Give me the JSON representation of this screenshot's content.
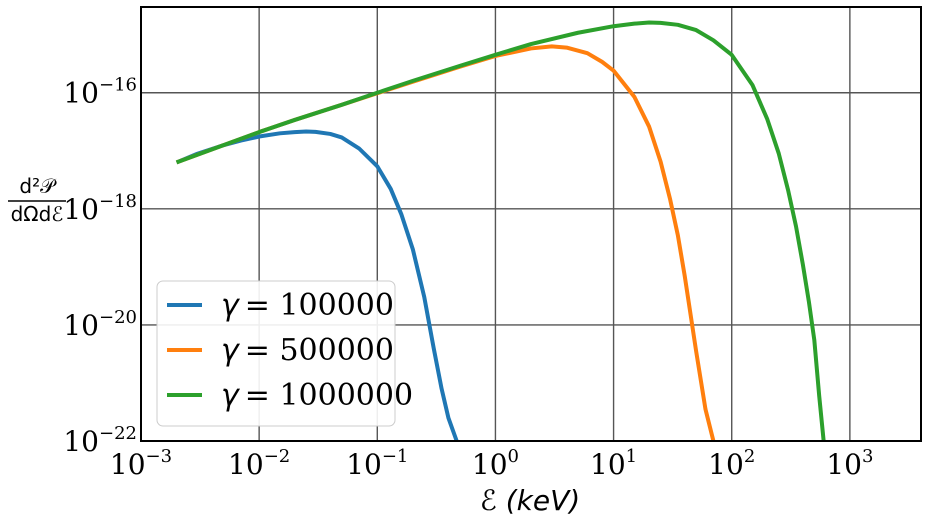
{
  "chart_data": {
    "type": "line",
    "title": "",
    "xlabel": "ℰ (keV)",
    "ylabel_top": "d²𝒫",
    "ylabel_bottom": "dΩdℰ",
    "xscale": "log",
    "yscale": "log",
    "xlim": [
      0.001,
      4000
    ],
    "ylim": [
      1e-22,
      3e-15
    ],
    "grid": true,
    "legend_position": "lower-left",
    "x_ticks": [
      {
        "base": "10",
        "exp": "−3",
        "value": 0.001
      },
      {
        "base": "10",
        "exp": "−2",
        "value": 0.01
      },
      {
        "base": "10",
        "exp": "−1",
        "value": 0.1
      },
      {
        "base": "10",
        "exp": "0",
        "value": 1
      },
      {
        "base": "10",
        "exp": "1",
        "value": 10
      },
      {
        "base": "10",
        "exp": "2",
        "value": 100
      },
      {
        "base": "10",
        "exp": "3",
        "value": 1000
      }
    ],
    "y_ticks": [
      {
        "base": "10",
        "exp": "−16",
        "value": 1e-16
      },
      {
        "base": "10",
        "exp": "−18",
        "value": 1e-18
      },
      {
        "base": "10",
        "exp": "−20",
        "value": 1e-20
      },
      {
        "base": "10",
        "exp": "−22",
        "value": 1e-22
      }
    ],
    "series": [
      {
        "name": "γ = 100000",
        "gamma_symbol": "γ",
        "gamma_value": "= 100000",
        "color": "#1f77b4",
        "points": [
          [
            0.002,
            6.3e-18
          ],
          [
            0.003,
            8.9e-18
          ],
          [
            0.005,
            1.25e-17
          ],
          [
            0.007,
            1.5e-17
          ],
          [
            0.01,
            1.76e-17
          ],
          [
            0.015,
            2e-17
          ],
          [
            0.02,
            2.1e-17
          ],
          [
            0.025,
            2.15e-17
          ],
          [
            0.03,
            2.12e-17
          ],
          [
            0.04,
            1.95e-17
          ],
          [
            0.05,
            1.7e-17
          ],
          [
            0.07,
            1.1e-17
          ],
          [
            0.1,
            5.4e-18
          ],
          [
            0.13,
            2.2e-18
          ],
          [
            0.16,
            8e-19
          ],
          [
            0.2,
            2e-19
          ],
          [
            0.25,
            3e-20
          ],
          [
            0.3,
            4e-21
          ],
          [
            0.35,
            8e-22
          ],
          [
            0.4,
            2.5e-22
          ],
          [
            0.47,
            1e-22
          ]
        ]
      },
      {
        "name": "γ = 500000",
        "gamma_symbol": "γ",
        "gamma_value": "= 500000",
        "color": "#ff7f0e",
        "points": [
          [
            0.002,
            6.3e-18
          ],
          [
            0.005,
            1.25e-17
          ],
          [
            0.01,
            2.1e-17
          ],
          [
            0.02,
            3.4e-17
          ],
          [
            0.05,
            6.2e-17
          ],
          [
            0.1,
            9.8e-17
          ],
          [
            0.2,
            1.55e-16
          ],
          [
            0.5,
            2.8e-16
          ],
          [
            1,
            4.3e-16
          ],
          [
            2,
            5.8e-16
          ],
          [
            3,
            6.3e-16
          ],
          [
            4,
            6e-16
          ],
          [
            6,
            4.8e-16
          ],
          [
            8,
            3.4e-16
          ],
          [
            10,
            2.4e-16
          ],
          [
            15,
            8.5e-17
          ],
          [
            20,
            2.6e-17
          ],
          [
            25,
            6.5e-18
          ],
          [
            30,
            1.5e-18
          ],
          [
            35,
            3.5e-19
          ],
          [
            40,
            7e-20
          ],
          [
            50,
            3.5e-21
          ],
          [
            60,
            3.5e-22
          ],
          [
            70,
            1e-22
          ]
        ]
      },
      {
        "name": "γ = 1000000",
        "gamma_symbol": "γ",
        "gamma_value": "= 1000000",
        "color": "#2ca02c",
        "points": [
          [
            0.002,
            6.3e-18
          ],
          [
            0.005,
            1.25e-17
          ],
          [
            0.01,
            2.1e-17
          ],
          [
            0.02,
            3.4e-17
          ],
          [
            0.05,
            6.2e-17
          ],
          [
            0.1,
            1e-16
          ],
          [
            0.2,
            1.6e-16
          ],
          [
            0.5,
            2.9e-16
          ],
          [
            1,
            4.5e-16
          ],
          [
            2,
            6.9e-16
          ],
          [
            5,
            1.08e-15
          ],
          [
            10,
            1.4e-15
          ],
          [
            15,
            1.55e-15
          ],
          [
            20,
            1.62e-15
          ],
          [
            25,
            1.6e-15
          ],
          [
            35,
            1.48e-15
          ],
          [
            50,
            1.2e-15
          ],
          [
            70,
            8e-16
          ],
          [
            100,
            4.5e-16
          ],
          [
            150,
            1.35e-16
          ],
          [
            200,
            3.5e-17
          ],
          [
            250,
            9e-18
          ],
          [
            300,
            2.1e-18
          ],
          [
            350,
            5e-19
          ],
          [
            400,
            1.1e-19
          ],
          [
            450,
            2.5e-20
          ],
          [
            500,
            5.5e-21
          ],
          [
            550,
            6e-22
          ],
          [
            600,
            1e-22
          ]
        ]
      }
    ]
  }
}
